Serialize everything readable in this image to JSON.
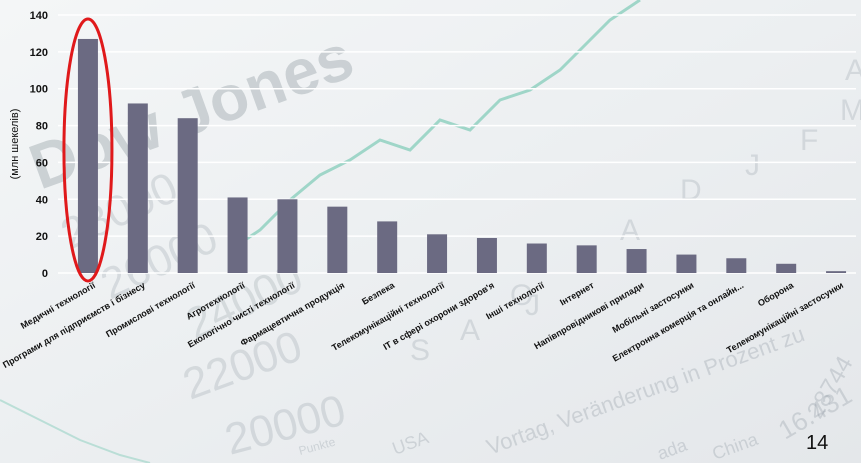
{
  "page": {
    "number": "14"
  },
  "background": {
    "big_text": "Dow Jones",
    "numbers": [
      "28000",
      "26000",
      "24000",
      "22000",
      "20000"
    ],
    "months": [
      "A",
      "D",
      "J",
      "F",
      "M",
      "A",
      "J",
      "A",
      "S",
      "O"
    ],
    "words": [
      "Vortag, Veränderung in Prozent zu",
      "USA",
      "China",
      "16.431",
      "28744",
      "Punkte",
      "ada"
    ]
  },
  "colors": {
    "bar": "#6b6a82",
    "highlight": "#e0191b",
    "grid": "#ffffff",
    "text": "#111111"
  },
  "chart_data": {
    "type": "bar",
    "ylabel": "(млн шекелів)",
    "ylim": [
      0,
      140
    ],
    "yticks": [
      0,
      20,
      40,
      60,
      80,
      100,
      120,
      140
    ],
    "grid": true,
    "highlight_index": 0,
    "categories": [
      "Медичні технології",
      "Програми для підприємств і бізнесу",
      "Промислові технології",
      "Агротехнології",
      "Екологічно чисті технології",
      "Фармацевтична продукція",
      "Безпека",
      "Телекомунікаційні технології",
      "ІТ в сфері охорони здоров'я",
      "Інші технології",
      "Інтернет",
      "Напівпровідникові прилади",
      "Мобільні застосунки",
      "Електронна комерція та онлайн...",
      "Оборона",
      "Телекомунікаційні застосунки"
    ],
    "values": [
      127,
      92,
      84,
      41,
      40,
      36,
      28,
      21,
      19,
      16,
      15,
      13,
      10,
      8,
      5,
      1
    ]
  }
}
